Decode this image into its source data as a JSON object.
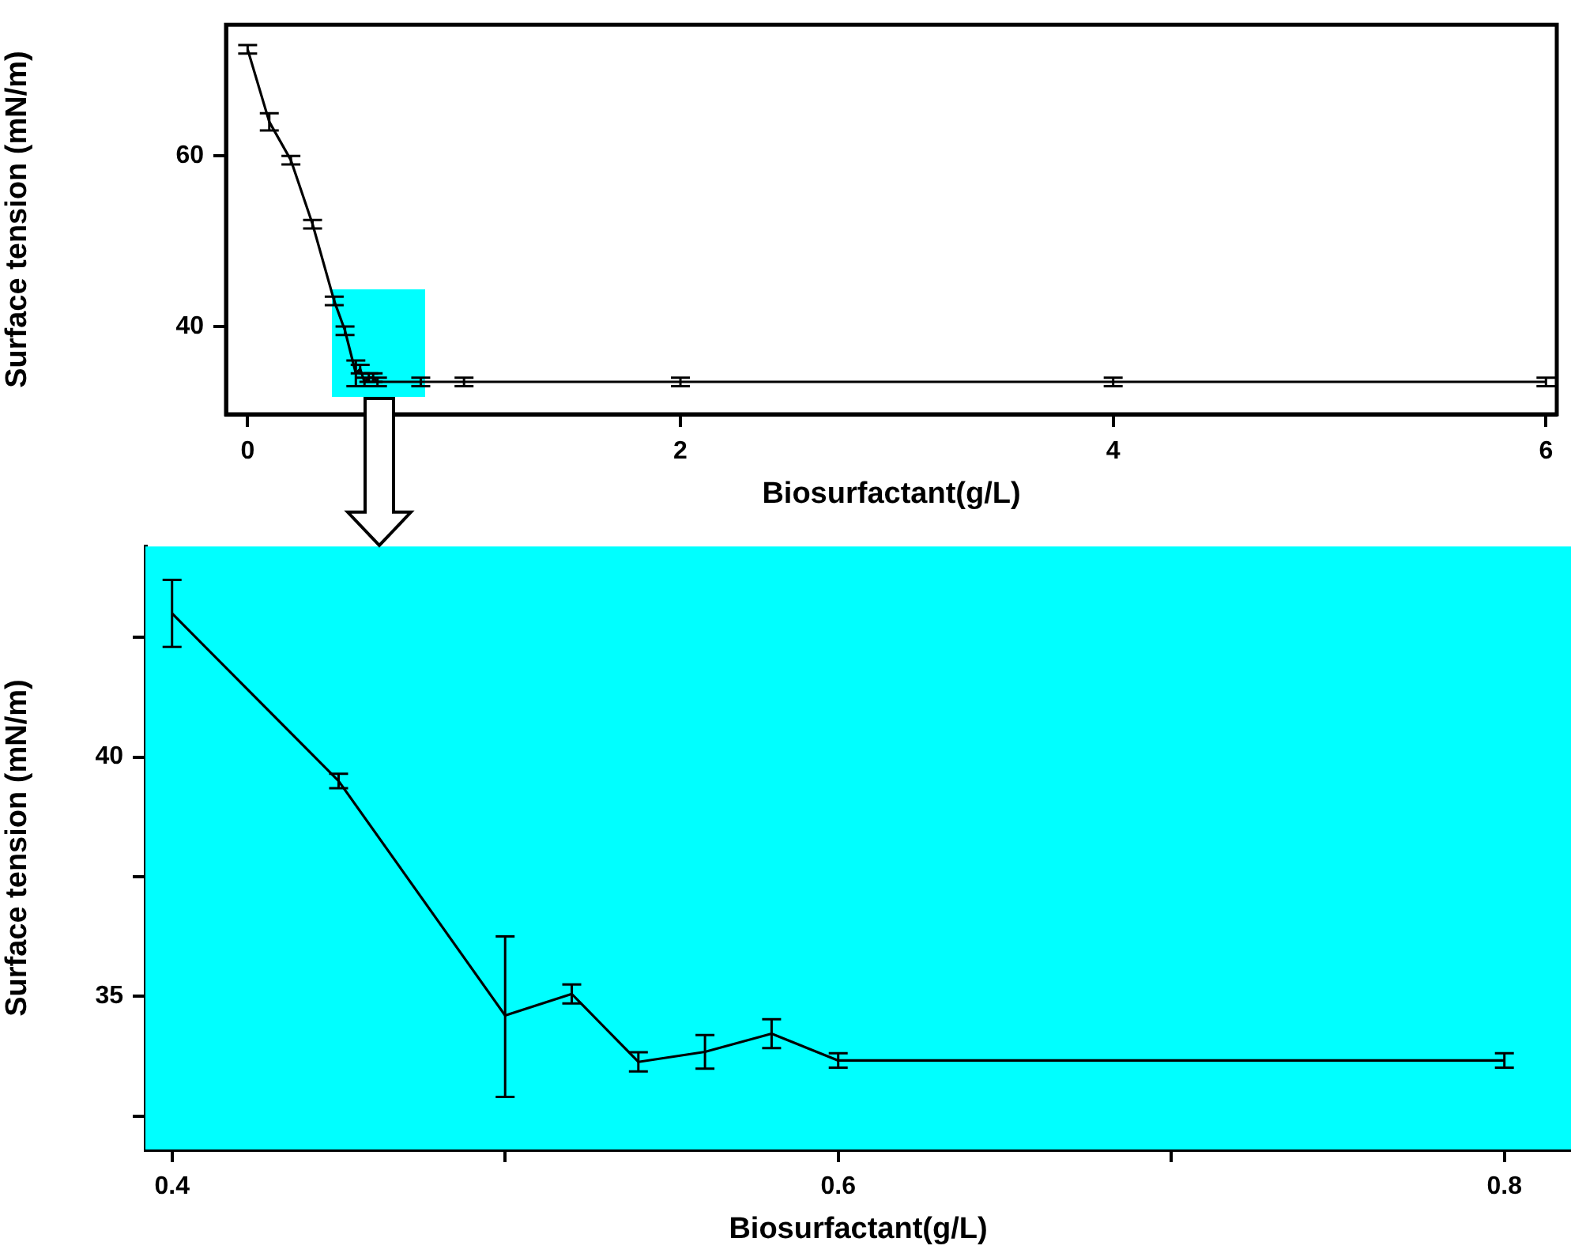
{
  "chart_data": [
    {
      "type": "line",
      "xlabel": "Biosurfactant(g/L)",
      "ylabel": "Surface tension (mN/m)",
      "marker": "none",
      "line_style": "solid",
      "x": [
        0,
        0.1,
        0.2,
        0.3,
        0.4,
        0.45,
        0.5,
        0.52,
        0.54,
        0.56,
        0.58,
        0.6,
        0.8,
        1,
        2,
        4,
        6
      ],
      "series": [
        {
          "color": "#000000",
          "values": [
            72.5,
            64,
            59.5,
            52,
            43,
            39.5,
            34.5,
            35,
            33.5,
            34,
            34,
            33.5,
            33.5,
            33.5,
            33.5,
            33.5,
            33.5
          ],
          "errors": [
            0.5,
            1,
            0.5,
            0.5,
            0.5,
            0.5,
            [
              33,
              36
            ],
            0.5,
            0.5,
            0.5,
            0.5,
            0.5,
            0.5,
            0.5,
            0.5,
            0.5,
            0.5
          ]
        }
      ],
      "xlim": [
        -0.1,
        6.05
      ],
      "ylim": [
        29.7,
        75.4
      ],
      "xticks": [
        0,
        2,
        4,
        6
      ],
      "yticks": [
        40,
        60
      ]
    },
    {
      "type": "line",
      "xlabel": "Biosurfactant(g/L)",
      "ylabel": "Surface tension (mN/m)",
      "line_style": "solid",
      "x": [
        0.4,
        0.45,
        0.5,
        0.52,
        0.54,
        0.56,
        0.58,
        0.6,
        0.8
      ],
      "series": [
        {
          "color": "#000000",
          "values": [
            43.0,
            39.5,
            34.6,
            35.05,
            33.63,
            33.84,
            34.22,
            33.66,
            33.66
          ],
          "errors": [
            0.7,
            0.15,
            [
              32.9,
              36.25
            ],
            0.2,
            0.2,
            0.35,
            0.3,
            0.15,
            0.15
          ]
        }
      ],
      "xlim": [
        0.392,
        0.82
      ],
      "ylim": [
        31.8,
        44.4
      ],
      "xticks": [
        0.4,
        {
          "value": 0.5,
          "label": null
        },
        0.6,
        {
          "value": 0.7,
          "label": null
        },
        0.8
      ],
      "yticks": [
        {
          "value": 32.5,
          "label": null
        },
        35,
        {
          "value": 37.5,
          "label": null
        },
        40,
        {
          "value": 42.5,
          "label": null
        }
      ]
    }
  ]
}
